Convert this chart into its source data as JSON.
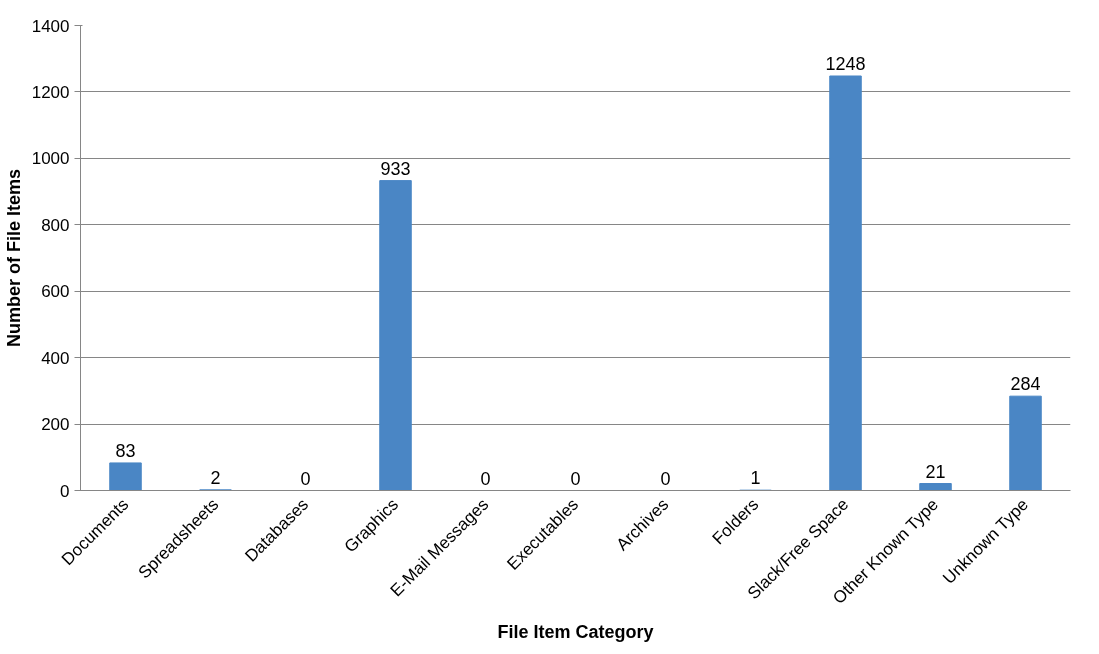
{
  "chart_data": {
    "type": "bar",
    "xlabel": "File Item Category",
    "ylabel": "Number of File Items",
    "categories": [
      "Documents",
      "Spreadsheets",
      "Databases",
      "Graphics",
      "E-Mail Messages",
      "Executables",
      "Archives",
      "Folders",
      "Slack/Free Space",
      "Other Known Type",
      "Unknown Type"
    ],
    "values": [
      83,
      2,
      0,
      933,
      0,
      0,
      0,
      1,
      1248,
      21,
      284
    ],
    "color": "#4a86c5",
    "ylim": [
      0,
      1400
    ],
    "yticks": [
      0,
      200,
      400,
      600,
      800,
      1000,
      1200,
      1400
    ],
    "grid": "y",
    "data_labels": true
  }
}
